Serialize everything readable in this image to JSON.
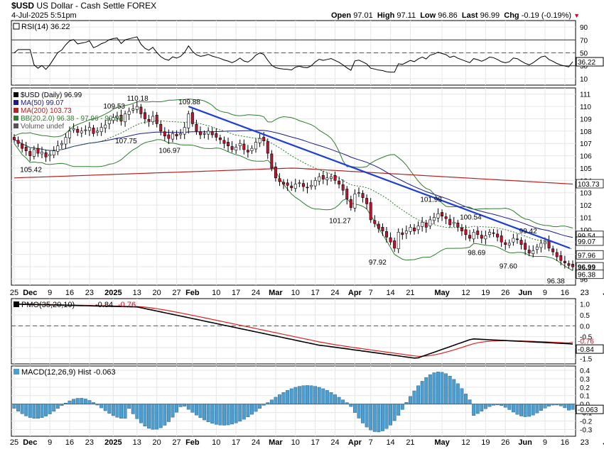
{
  "header": {
    "symbol": "$USD",
    "name": "US Dollar - Cash Settle",
    "exchange": "FOREX",
    "date_time": "4-Jul-2025 5:51pm",
    "open_label": "Open",
    "open": "97.01",
    "high_label": "High",
    "high": "97.11",
    "low_label": "Low",
    "low": "96.86",
    "last_label": "Last",
    "last": "96.99",
    "chg_label": "Chg",
    "chg": "-0.19 (-0.19%)"
  },
  "colors": {
    "up": "#ffffff",
    "down": "#c8102e",
    "ma50": "#1a1a8c",
    "ma200": "#b22222",
    "bb": "#2e7d2e",
    "trend": "#1c3fd6",
    "pmo_fast": "#000000",
    "pmo_signal": "#e02020",
    "hist": "#4a9fd0",
    "grid": "#e6e6e6"
  },
  "icons": {
    "legend_marker": "legend-swatch-icon",
    "down_marker": "down-triangle-icon"
  },
  "rsi": {
    "label": "RSI(14) 36.22",
    "ticks": [
      "90",
      "70",
      "50",
      "30",
      "10"
    ],
    "last_value": "36.22",
    "ylim": [
      0,
      100
    ],
    "levels": [
      70,
      30
    ]
  },
  "price": {
    "legend": [
      {
        "key": "main",
        "text": "$USD (Daily) 96.99",
        "color": "#000000"
      },
      {
        "key": "ma50",
        "text": "MA(50) 99.07",
        "color": "#1a1a8c"
      },
      {
        "key": "ma200",
        "text": "MA(200) 103.73",
        "color": "#b22222"
      },
      {
        "key": "bb",
        "text": "BB(20,2.0) 96.38 - 97.96 - 99.54",
        "color": "#2e7d2e"
      },
      {
        "key": "vol",
        "text": "Volume undef",
        "color": "#555555"
      }
    ],
    "ticks": [
      "111",
      "110",
      "109",
      "108",
      "107",
      "106",
      "105",
      "104",
      "103",
      "102",
      "101",
      "100",
      "99",
      "98",
      "97",
      "96"
    ],
    "ylim": [
      95.5,
      111.5
    ],
    "right_labels": [
      {
        "text": "103.73",
        "value": 103.73
      },
      {
        "text": "99.54",
        "value": 99.54
      },
      {
        "text": "99.07",
        "value": 99.07
      },
      {
        "text": "97.96",
        "value": 97.96
      },
      {
        "text": "96.99",
        "value": 96.99
      },
      {
        "text": "96.38",
        "value": 96.38
      }
    ],
    "annotations": [
      {
        "text": "110.18",
        "idx": 31,
        "value": 110.18,
        "pos": "above"
      },
      {
        "text": "109.88",
        "idx": 44,
        "value": 109.88,
        "pos": "above"
      },
      {
        "text": "109.53",
        "idx": 25,
        "value": 109.53,
        "pos": "above"
      },
      {
        "text": "107.75",
        "idx": 28,
        "value": 107.75,
        "pos": "below"
      },
      {
        "text": "106.97",
        "idx": 39,
        "value": 106.97,
        "pos": "below"
      },
      {
        "text": "105.42",
        "idx": 4,
        "value": 105.42,
        "pos": "below"
      },
      {
        "text": "101.27",
        "idx": 82,
        "value": 101.27,
        "pos": "below"
      },
      {
        "text": "101.98",
        "idx": 105,
        "value": 101.98,
        "pos": "above"
      },
      {
        "text": "100.54",
        "idx": 115,
        "value": 100.54,
        "pos": "above"
      },
      {
        "text": "99.42",
        "idx": 130,
        "value": 99.42,
        "pos": "above"
      },
      {
        "text": "98.69",
        "idx": 117,
        "value": 98.69,
        "pos": "below"
      },
      {
        "text": "97.92",
        "idx": 92,
        "value": 97.92,
        "pos": "below"
      },
      {
        "text": "97.60",
        "idx": 125,
        "value": 97.6,
        "pos": "below"
      },
      {
        "text": "96.38",
        "idx": 137,
        "value": 96.38,
        "pos": "below"
      }
    ]
  },
  "pmo": {
    "label_prefix": "PMO(35,20,10)",
    "value": "-0.84",
    "signal": "-0.76",
    "ticks": [
      "1.0",
      "0.5",
      "0.0",
      "-0.5",
      "-1.0",
      "-1.5"
    ],
    "ylim": [
      -1.75,
      1.25
    ],
    "right_labels": [
      "-0.76",
      "-0.84"
    ]
  },
  "macd": {
    "label": "MACD(12,26,9) Hist -0.063",
    "ticks": [
      "0.4",
      "0.3",
      "0.2",
      "0.1",
      "0.0",
      "-0.1",
      "-0.2",
      "-0.3"
    ],
    "ylim": [
      -0.38,
      0.45
    ],
    "right_label": "-0.063"
  },
  "x_axis": {
    "labels": [
      {
        "text": "25",
        "idx": 0,
        "bold": false
      },
      {
        "text": "Dec",
        "idx": 4,
        "bold": true
      },
      {
        "text": "9",
        "idx": 9,
        "bold": false
      },
      {
        "text": "16",
        "idx": 14,
        "bold": false
      },
      {
        "text": "23",
        "idx": 19,
        "bold": false
      },
      {
        "text": "2025",
        "idx": 25,
        "bold": true
      },
      {
        "text": "13",
        "idx": 31,
        "bold": false
      },
      {
        "text": "20",
        "idx": 36,
        "bold": false
      },
      {
        "text": "27",
        "idx": 41,
        "bold": false
      },
      {
        "text": "Feb",
        "idx": 45,
        "bold": true
      },
      {
        "text": "10",
        "idx": 51,
        "bold": false
      },
      {
        "text": "17",
        "idx": 56,
        "bold": false
      },
      {
        "text": "24",
        "idx": 61,
        "bold": false
      },
      {
        "text": "Mar",
        "idx": 66,
        "bold": true
      },
      {
        "text": "10",
        "idx": 71,
        "bold": false
      },
      {
        "text": "17",
        "idx": 76,
        "bold": false
      },
      {
        "text": "24",
        "idx": 81,
        "bold": false
      },
      {
        "text": "Apr",
        "idx": 86,
        "bold": true
      },
      {
        "text": "7",
        "idx": 90,
        "bold": false
      },
      {
        "text": "14",
        "idx": 95,
        "bold": false
      },
      {
        "text": "21",
        "idx": 100,
        "bold": false
      },
      {
        "text": "May",
        "idx": 108,
        "bold": true
      },
      {
        "text": "12",
        "idx": 114,
        "bold": false
      },
      {
        "text": "19",
        "idx": 119,
        "bold": false
      },
      {
        "text": "26",
        "idx": 124,
        "bold": false
      },
      {
        "text": "Jun",
        "idx": 129,
        "bold": true
      },
      {
        "text": "9",
        "idx": 134,
        "bold": false
      },
      {
        "text": "16",
        "idx": 139,
        "bold": false
      },
      {
        "text": "23",
        "idx": 144,
        "bold": false
      },
      {
        "text": "Jul",
        "idx": 150,
        "bold": true
      }
    ]
  },
  "chart_data": {
    "type": "candlestick",
    "title": "$USD US Dollar - Cash Settle FOREX",
    "ylim": [
      95.5,
      111.5
    ],
    "closes": [
      107.3,
      107.0,
      106.6,
      106.4,
      106.0,
      106.5,
      106.2,
      106.3,
      105.9,
      106.1,
      106.4,
      106.8,
      107.0,
      107.5,
      108.0,
      108.2,
      107.9,
      108.0,
      108.1,
      108.3,
      107.8,
      108.0,
      108.3,
      108.5,
      108.9,
      109.1,
      109.2,
      108.8,
      109.4,
      109.6,
      109.8,
      110.0,
      109.4,
      109.0,
      108.8,
      109.2,
      108.6,
      108.0,
      107.6,
      107.4,
      107.8,
      107.6,
      107.8,
      108.3,
      109.4,
      108.6,
      108.0,
      107.7,
      107.8,
      108.0,
      107.7,
      107.5,
      107.3,
      107.0,
      106.8,
      106.5,
      106.7,
      107.0,
      106.5,
      106.3,
      106.6,
      107.1,
      107.4,
      107.2,
      106.2,
      105.0,
      104.2,
      103.9,
      103.7,
      103.6,
      103.4,
      103.7,
      103.8,
      103.5,
      103.4,
      103.6,
      104.0,
      104.3,
      104.1,
      104.2,
      104.3,
      104.0,
      103.7,
      103.2,
      102.5,
      101.8,
      102.9,
      103.0,
      102.6,
      102.1,
      100.8,
      100.5,
      100.1,
      99.9,
      99.4,
      99.0,
      98.5,
      99.8,
      99.6,
      99.9,
      100.2,
      99.9,
      100.3,
      100.6,
      100.2,
      100.8,
      101.0,
      101.3,
      101.1,
      100.9,
      100.4,
      100.6,
      100.2,
      99.9,
      99.6,
      99.3,
      99.8,
      99.6,
      99.3,
      99.5,
      99.8,
      99.7,
      99.4,
      99.0,
      98.8,
      98.9,
      99.3,
      99.2,
      98.8,
      98.4,
      98.1,
      98.3,
      98.6,
      98.9,
      99.0,
      98.5,
      98.2,
      97.8,
      97.5,
      97.3,
      97.1,
      96.99
    ]
  }
}
